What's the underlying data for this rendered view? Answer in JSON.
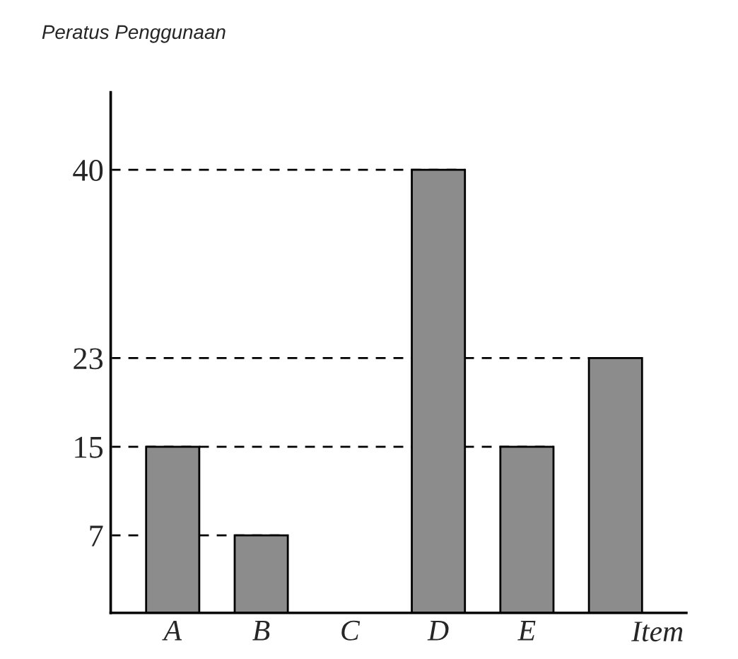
{
  "chart_data": {
    "type": "bar",
    "title": "Peratus Penggunaan",
    "xlabel": "Item",
    "categories": [
      "A",
      "B",
      "C",
      "D",
      "E",
      null
    ],
    "values": [
      15,
      7,
      null,
      40,
      15,
      23
    ],
    "color": "#8c8c8c",
    "ylim": [
      0,
      47
    ],
    "yticks": [
      7,
      15,
      23,
      40
    ],
    "ref_lines": [
      {
        "axis": "y",
        "value": 40,
        "line_style": "dashed"
      },
      {
        "axis": "y",
        "value": 23,
        "line_style": "dashed"
      },
      {
        "axis": "y",
        "value": 15,
        "line_style": "dashed"
      },
      {
        "axis": "y",
        "value": 7,
        "line_style": "dashed"
      }
    ],
    "grid": false,
    "legend": false
  }
}
